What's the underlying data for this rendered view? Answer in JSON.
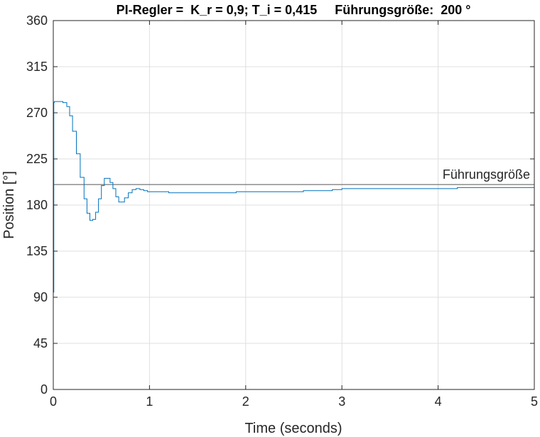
{
  "chart_data": {
    "type": "line",
    "title": "PI-Regler =  K_r = 0,9; T_i = 0,415     Führungsgröße:  200 °",
    "xlabel": "Time (seconds)",
    "ylabel": "Position [°]",
    "xlim": [
      0,
      5
    ],
    "ylim": [
      0,
      360
    ],
    "xticks": [
      "0",
      "1",
      "2",
      "3",
      "4",
      "5"
    ],
    "yticks": [
      "0",
      "45",
      "90",
      "135",
      "180",
      "225",
      "270",
      "315",
      "360"
    ],
    "grid": true,
    "reference": {
      "label": "Führungsgröße",
      "value": 200
    },
    "colors": {
      "series": "#0072BD",
      "reference": "#555555",
      "grid": "#DFDFDF",
      "axis": "#262626"
    },
    "series": [
      {
        "x": [
          0,
          0.005,
          0.01,
          0.02,
          0.05,
          0.1,
          0.14,
          0.17,
          0.2,
          0.24,
          0.28,
          0.32,
          0.35,
          0.38,
          0.41,
          0.44,
          0.47,
          0.5,
          0.53,
          0.56,
          0.59,
          0.62,
          0.65,
          0.68,
          0.71,
          0.74,
          0.78,
          0.82,
          0.86,
          0.9,
          0.94,
          0.98,
          1.02,
          1.1,
          1.2,
          1.3,
          1.4,
          1.5,
          1.6,
          1.7,
          1.8,
          1.9,
          2.0,
          2.1,
          2.2,
          2.3,
          2.4,
          2.5,
          2.6,
          2.7,
          2.8,
          2.9,
          3.0,
          3.2,
          3.4,
          3.6,
          3.8,
          4.0,
          4.2,
          4.4,
          4.6,
          4.8,
          5.0
        ],
        "values": [
          95,
          280,
          281,
          281,
          281,
          280,
          276,
          267,
          252,
          230,
          207,
          186,
          172,
          165,
          166,
          173,
          186,
          199,
          206,
          206,
          202,
          196,
          188,
          183,
          183,
          187,
          192,
          195,
          196,
          195,
          194,
          193,
          193,
          193,
          192,
          192,
          192,
          192,
          192,
          192,
          192,
          193,
          193,
          193,
          193,
          193,
          193,
          193,
          194,
          194,
          194,
          195,
          196,
          196,
          196,
          196,
          196,
          196,
          197,
          197,
          197,
          197,
          197
        ]
      }
    ]
  }
}
